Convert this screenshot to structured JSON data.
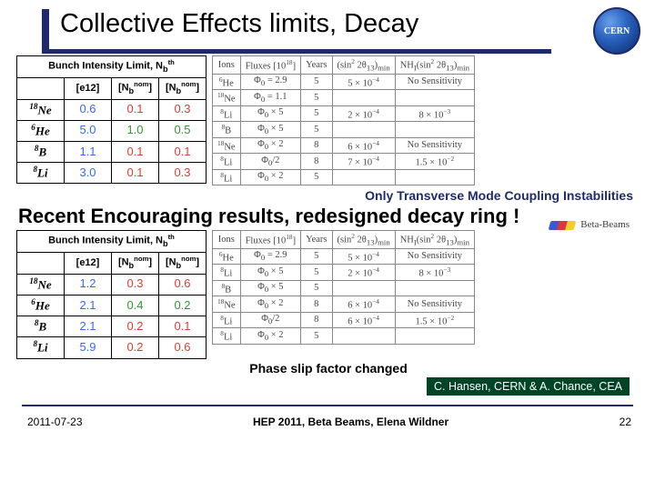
{
  "title": "Collective Effects limits, Decay",
  "logo_text": "CERN",
  "left_table_header": "Bunch Intensity Limit, N_b^th",
  "left_cols": [
    "[e12]",
    "[N_b^nom]",
    "[N_b^nom]"
  ],
  "left_rows_labels": [
    "18Ne",
    "6He",
    "8B",
    "8Li"
  ],
  "left_table1": [
    [
      "0.6",
      "0.1",
      "0.3"
    ],
    [
      "5.0",
      "1.0",
      "0.5"
    ],
    [
      "1.1",
      "0.1",
      "0.1"
    ],
    [
      "3.0",
      "0.1",
      "0.3"
    ]
  ],
  "left_table2": [
    [
      "1.2",
      "0.3",
      "0.6"
    ],
    [
      "2.1",
      "0.4",
      "0.2"
    ],
    [
      "2.1",
      "0.2",
      "0.1"
    ],
    [
      "5.9",
      "0.2",
      "0.6"
    ]
  ],
  "right_cols": [
    "Ions",
    "Fluxes [10^18]",
    "Years",
    "(sin^2 2θ_13)_min",
    "NH_I (sin^2 2θ_13)_min"
  ],
  "right_table1": [
    [
      "6He",
      "Φ_0 = 2.9",
      "5",
      "5 × 10^−4",
      "No Sensitivity"
    ],
    [
      "18Ne",
      "Φ_0 = 1.1",
      "5",
      "",
      ""
    ],
    [
      "8Li",
      "Φ_0 × 5",
      "5",
      "2 × 10^−4",
      "8 × 10^−3"
    ],
    [
      "8B",
      "Φ_0 × 5",
      "5",
      "",
      ""
    ],
    [
      "18Ne",
      "Φ_0 × 2",
      "8",
      "6 × 10^−4",
      "No Sensitivity"
    ],
    [
      "8Li",
      "Φ_0/2",
      "8",
      "7 × 10^−4",
      "1.5 × 10^−2"
    ],
    [
      "8Li",
      "Φ_0 × 2",
      "5",
      "",
      ""
    ]
  ],
  "right_table2": [
    [
      "6He",
      "Φ_0 = 2.9",
      "5",
      "5 × 10^−4",
      "No Sensitivity"
    ],
    [
      "8Li",
      "Φ_0 × 5",
      "5",
      "2 × 10^−4",
      "8 × 10^−3"
    ],
    [
      "8B",
      "Φ_0 × 5",
      "5",
      "",
      ""
    ],
    [
      "18Ne",
      "Φ_0 × 2",
      "8",
      "6 × 10^−4",
      "No Sensitivity"
    ],
    [
      "8Li",
      "Φ_0/2",
      "8",
      "6 × 10^−4",
      "1.5 × 10^−2"
    ],
    [
      "8Li",
      "Φ_0 × 2",
      "5",
      "",
      ""
    ]
  ],
  "note1": "Only Transverse Mode Coupling Instabilities",
  "heading2": "Recent Encouraging results, redesigned decay ring !",
  "beta_label": "Beta-Beams",
  "note2": "Phase slip factor changed",
  "credit": "C. Hansen, CERN & A. Chance, CEA",
  "footer_date": "2011-07-23",
  "footer_center": "HEP 2011, Beta Beams, Elena Wildner",
  "footer_page": "22",
  "colors": {
    "brand": "#1e2a6b",
    "blue_cell": "#3a66ff",
    "red_cell": "#e23b2e",
    "green_cell": "#2e9a2e",
    "credit_bg": "#004426"
  }
}
